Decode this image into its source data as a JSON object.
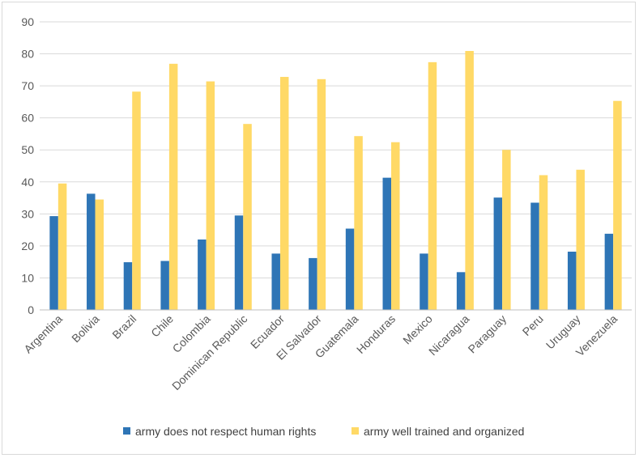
{
  "chart_data": {
    "type": "bar",
    "categories": [
      "Argentina",
      "Bolivia",
      "Brazil",
      "Chile",
      "Colombia",
      "Dominican Republic",
      "Ecuador",
      "El Salvador",
      "Guatemala",
      "Honduras",
      "Mexico",
      "Nicaragua",
      "Paraguay",
      "Peru",
      "Uruguay",
      "Venezuela"
    ],
    "series": [
      {
        "name": "army does not respect human rights",
        "color": "#2e75b6",
        "values": [
          29.3,
          36.3,
          14.9,
          15.3,
          22,
          29.5,
          17.6,
          16.2,
          25.4,
          41.3,
          17.6,
          11.8,
          35.1,
          33.5,
          18.2,
          23.8
        ]
      },
      {
        "name": "army well trained and organized",
        "color": "#ffd966",
        "values": [
          39.5,
          34.5,
          68.2,
          76.9,
          71.4,
          58.1,
          72.8,
          72.1,
          54.3,
          52.4,
          77.4,
          80.9,
          50,
          42.1,
          43.8,
          65.3
        ]
      }
    ],
    "ylim": [
      0,
      90
    ],
    "yticks": [
      0,
      10,
      20,
      30,
      40,
      50,
      60,
      70,
      80,
      90
    ],
    "grid": true,
    "legend": "bottom"
  }
}
